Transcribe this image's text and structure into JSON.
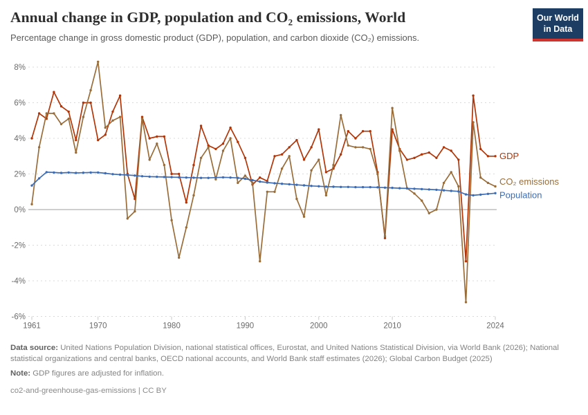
{
  "header": {
    "title": "Annual change in GDP, population and CO₂ emissions, World",
    "subtitle": "Percentage change in gross domestic product (GDP), population, and carbon dioxide (CO₂) emissions.",
    "logo_line1": "Our World",
    "logo_line2": "in Data",
    "logo_bg": "#1d3d63",
    "logo_accent": "#cf352e"
  },
  "chart_data": {
    "type": "line",
    "x": [
      1961,
      1962,
      1963,
      1964,
      1965,
      1966,
      1967,
      1968,
      1969,
      1970,
      1971,
      1972,
      1973,
      1974,
      1975,
      1976,
      1977,
      1978,
      1979,
      1980,
      1981,
      1982,
      1983,
      1984,
      1985,
      1986,
      1987,
      1988,
      1989,
      1990,
      1991,
      1992,
      1993,
      1994,
      1995,
      1996,
      1997,
      1998,
      1999,
      2000,
      2001,
      2002,
      2003,
      2004,
      2005,
      2006,
      2007,
      2008,
      2009,
      2010,
      2011,
      2012,
      2013,
      2014,
      2015,
      2016,
      2017,
      2018,
      2019,
      2020,
      2021,
      2022,
      2023,
      2024
    ],
    "series": [
      {
        "name": "GDP",
        "color": "#b13507",
        "values": [
          4.0,
          5.4,
          5.1,
          6.6,
          5.8,
          5.5,
          3.9,
          6.0,
          6.0,
          3.9,
          4.2,
          5.5,
          6.4,
          2.0,
          0.6,
          5.2,
          4.0,
          4.1,
          4.1,
          2.0,
          2.0,
          0.4,
          2.5,
          4.7,
          3.6,
          3.4,
          3.7,
          4.6,
          3.8,
          2.9,
          1.4,
          1.8,
          1.6,
          3.0,
          3.1,
          3.5,
          3.9,
          2.8,
          3.5,
          4.5,
          2.1,
          2.3,
          3.1,
          4.4,
          4.0,
          4.4,
          4.4,
          2.1,
          -1.6,
          4.5,
          3.4,
          2.8,
          2.9,
          3.1,
          3.2,
          2.9,
          3.5,
          3.3,
          2.8,
          -2.9,
          6.4,
          3.4,
          3.0,
          3.0
        ]
      },
      {
        "name": "CO₂ emissions",
        "color": "#996d39",
        "values": [
          0.3,
          3.5,
          5.4,
          5.4,
          4.8,
          5.1,
          3.2,
          5.2,
          6.7,
          8.3,
          4.6,
          5.0,
          5.2,
          -0.5,
          -0.1,
          5.1,
          2.8,
          3.7,
          2.5,
          -0.6,
          -2.7,
          -1.0,
          0.8,
          2.9,
          3.5,
          1.7,
          3.3,
          4.0,
          1.5,
          1.9,
          1.5,
          -2.9,
          1.0,
          1.0,
          2.3,
          3.0,
          0.6,
          -0.4,
          2.2,
          2.8,
          0.8,
          2.5,
          5.3,
          3.6,
          3.5,
          3.5,
          3.4,
          2.0,
          -1.5,
          5.7,
          3.3,
          1.2,
          0.9,
          0.5,
          -0.2,
          0.0,
          1.5,
          2.1,
          1.3,
          -5.2,
          4.9,
          1.8,
          1.5,
          1.3
        ]
      },
      {
        "name": "Population",
        "color": "#3c6cb4",
        "values": [
          1.35,
          1.75,
          2.1,
          2.08,
          2.06,
          2.08,
          2.06,
          2.07,
          2.08,
          2.08,
          2.04,
          1.99,
          1.96,
          1.94,
          1.91,
          1.87,
          1.85,
          1.84,
          1.83,
          1.82,
          1.81,
          1.8,
          1.79,
          1.78,
          1.78,
          1.8,
          1.81,
          1.8,
          1.78,
          1.73,
          1.65,
          1.57,
          1.52,
          1.48,
          1.45,
          1.42,
          1.39,
          1.36,
          1.33,
          1.31,
          1.29,
          1.28,
          1.27,
          1.27,
          1.26,
          1.26,
          1.26,
          1.25,
          1.23,
          1.22,
          1.2,
          1.19,
          1.17,
          1.15,
          1.13,
          1.11,
          1.08,
          1.05,
          1.02,
          0.85,
          0.8,
          0.84,
          0.88,
          0.92
        ]
      }
    ],
    "yticks": [
      8,
      6,
      4,
      2,
      0,
      -2,
      -4,
      -6
    ],
    "ytick_suffix": "%",
    "xticks": [
      1961,
      1970,
      1980,
      1990,
      2000,
      2010,
      2024
    ],
    "ylim": [
      -6,
      8
    ],
    "xlim": [
      1961,
      2024
    ],
    "grid": "dashed",
    "legend_position": "right-of-line-ends",
    "style": {
      "grid_color": "#d9d9d9",
      "zero_line_color": "#9f9f9f",
      "tick_color": "#c9c9c9",
      "axis_label_color": "#6b6b6b"
    }
  },
  "footer": {
    "data_source_label": "Data source:",
    "data_source_text": "United Nations Population Division, national statistical offices, Eurostat, and United Nations Statistical Division, via World Bank (2026); National statistical organizations and central banks, OECD national accounts, and World Bank staff estimates (2026); Global Carbon Budget (2025)",
    "note_label": "Note:",
    "note_text": "GDP figures are adjusted for inflation.",
    "slug": "co2-and-greenhouse-gas-emissions",
    "divider": " | ",
    "license": "CC BY"
  }
}
